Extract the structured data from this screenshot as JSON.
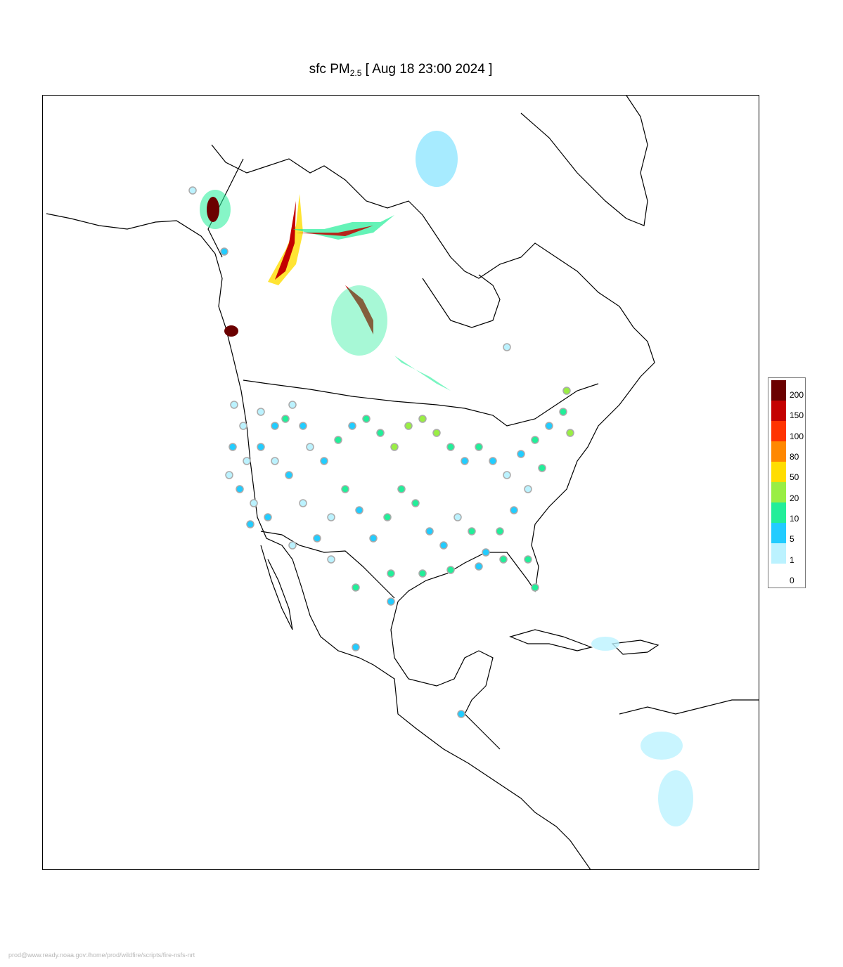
{
  "title": {
    "prefix": "sfc PM",
    "subscript": "2.5",
    "suffix": " [ Aug 18 23:00 2024 ]"
  },
  "legend": {
    "entries": [
      {
        "label": "200",
        "color": "#6b0000"
      },
      {
        "label": "150",
        "color": "#c40000"
      },
      {
        "label": "100",
        "color": "#ff3300"
      },
      {
        "label": "80",
        "color": "#ff8800"
      },
      {
        "label": "50",
        "color": "#ffdd00"
      },
      {
        "label": "20",
        "color": "#99ee44"
      },
      {
        "label": "10",
        "color": "#22ee99"
      },
      {
        "label": "5",
        "color": "#22ccff"
      },
      {
        "label": "1",
        "color": "#bbf2ff"
      },
      {
        "label": "0",
        "color": "#ffffff"
      }
    ]
  },
  "footer": {
    "text": "prod@www.ready.noaa.gov:/home/prod/wildfire/scripts/fire-nsfs-nrt"
  }
}
